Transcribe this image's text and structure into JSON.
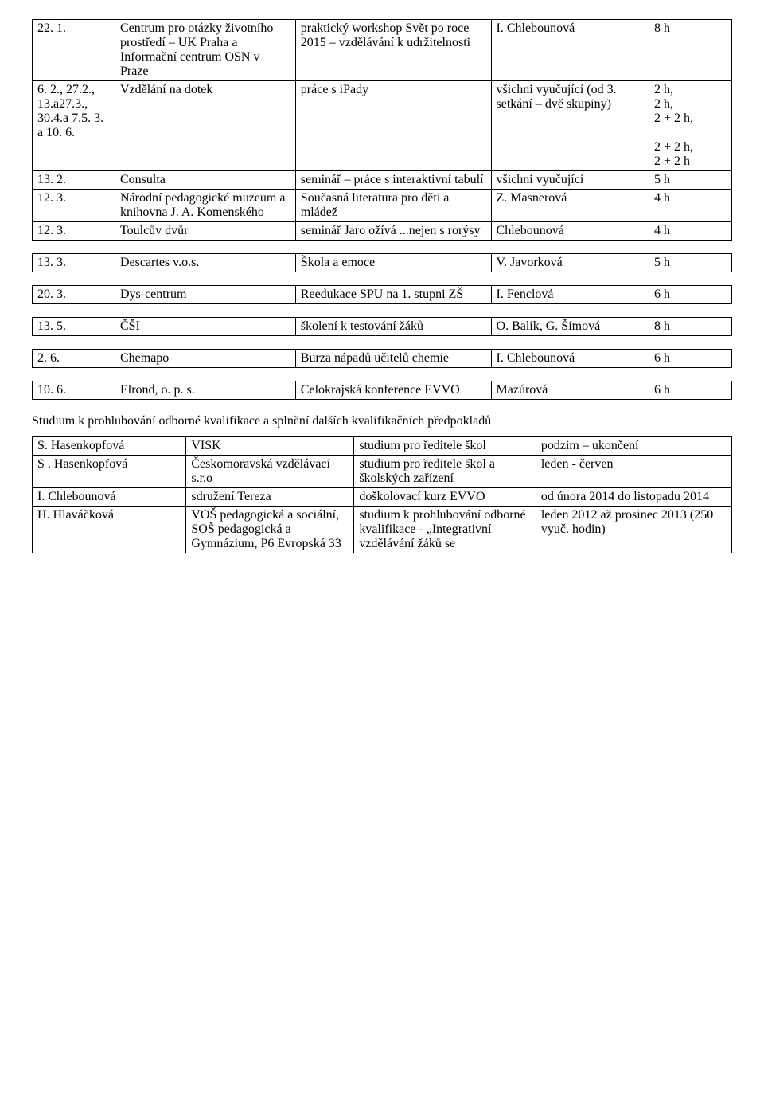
{
  "tables": [
    {
      "class": "t1",
      "rows": [
        [
          "22. 1.",
          "Centrum pro otázky životního prostředí – UK Praha  a Informační centrum OSN v Praze",
          "praktický workshop Svět po roce 2015 – vzdělávání k udržitelnosti",
          "I. Chlebounová",
          "8 h"
        ],
        [
          "6. 2., 27.2., 13.a27.3., 30.4.a 7.5. 3. a 10. 6.",
          "Vzdělání na dotek",
          "práce s iPady",
          "všichni vyučující (od 3. setkání – dvě skupiny)",
          "2 h,\n2 h,\n2 + 2 h,\n\n2 + 2 h,\n2 + 2 h"
        ],
        [
          "13. 2.",
          "Consulta",
          "seminář – práce s interaktivní tabulí",
          "všichni vyučující",
          "5 h"
        ],
        [
          "12. 3.",
          "Národní pedagogické muzeum a knihovna J. A. Komenského",
          "Současná literatura pro děti a mládež",
          "Z. Masnerová",
          "4 h"
        ],
        [
          "12. 3.",
          "Toulcův dvůr",
          "seminář Jaro ožívá ...nejen s rorýsy",
          "Chlebounová",
          "4 h"
        ]
      ]
    },
    {
      "class": "t1",
      "rows": [
        [
          "13. 3.",
          "Descartes v.o.s.",
          "Škola a emoce",
          "V. Javorková",
          "5 h"
        ]
      ]
    },
    {
      "class": "t1",
      "rows": [
        [
          "20. 3.",
          "Dys-centrum",
          "Reedukace SPU na 1. stupni ZŠ",
          "I. Fenclová",
          "6 h"
        ]
      ]
    },
    {
      "class": "t1",
      "rows": [
        [
          "13. 5.",
          "ČŠI",
          "školení k testování žáků",
          "O. Balík, G. Šímová",
          "8 h"
        ]
      ]
    },
    {
      "class": "t1",
      "rows": [
        [
          "2. 6.",
          "Chemapo",
          "Burza nápadů učitelů chemie",
          "I. Chlebounová",
          "6 h"
        ]
      ]
    },
    {
      "class": "t1",
      "rows": [
        [
          "10. 6.",
          "Elrond, o. p. s.",
          "Celokrajská konference EVVO",
          "Mazúrová",
          "6 h"
        ]
      ]
    }
  ],
  "heading": "Studium k prohlubování odborné kvalifikace a splnění dalších kvalifikačních předpokladů",
  "table2": {
    "class": "t2",
    "rows": [
      [
        "S. Hasenkopfová",
        "VISK",
        "studium pro ředitele škol",
        "podzim – ukončení"
      ],
      [
        "S . Hasenkopfová",
        "Českomoravská vzdělávací s.r.o",
        "studium pro ředitele škol a školských zařízení",
        "leden - červen"
      ],
      [
        "I. Chlebounová",
        "sdružení Tereza",
        "doškolovací kurz EVVO",
        "od února 2014 do listopadu 2014"
      ],
      [
        "H. Hlaváčková",
        "VOŠ pedagogická a sociální, SOŠ pedagogická a Gymnázium, P6 Evropská 33",
        "studium k prohlubování odborné kvalifikace - „Integrativní vzdělávání žáků se",
        "leden 2012 až prosinec 2013 (250 vyuč. hodin)"
      ]
    ],
    "lastRowNoBottom": true
  }
}
